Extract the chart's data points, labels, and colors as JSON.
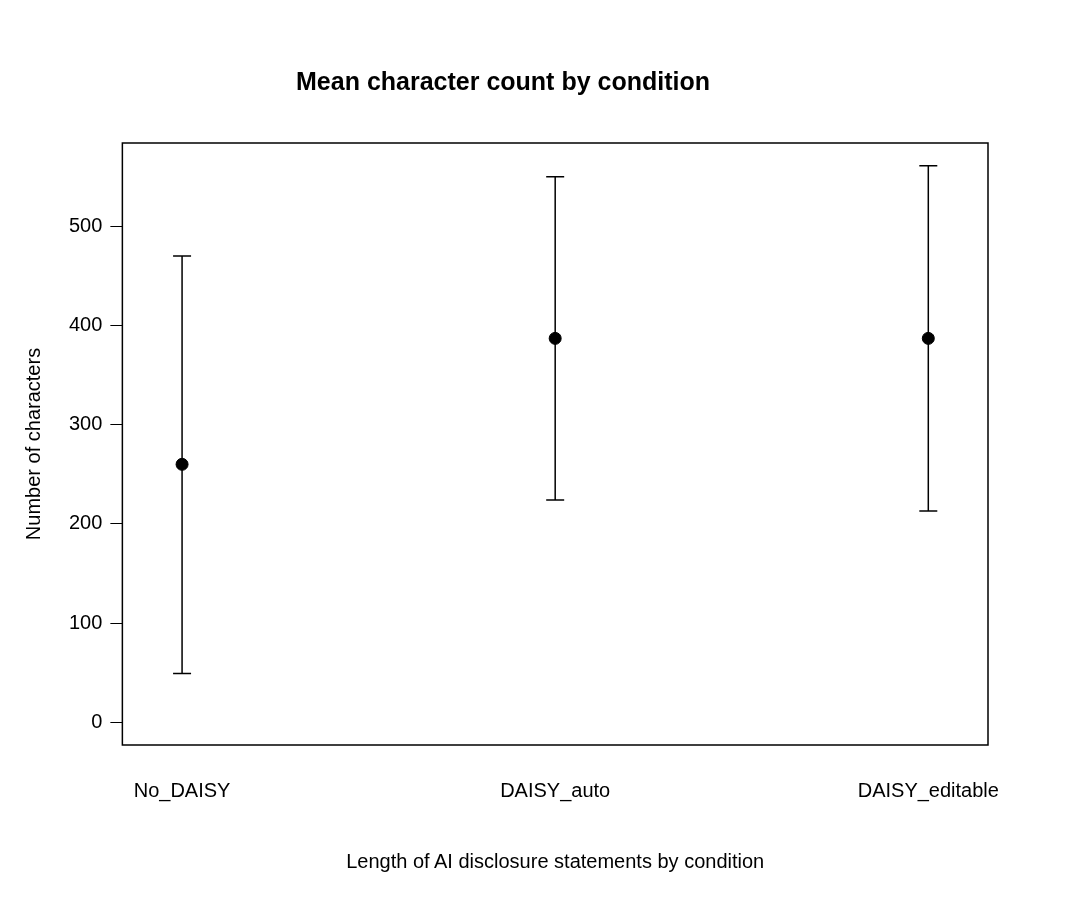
{
  "chart_data": {
    "type": "scatter",
    "title": "Mean character count by condition",
    "xlabel": "Length of AI disclosure statements by condition",
    "ylabel": "Number of characters",
    "categories": [
      "No_DAISY",
      "DAISY_auto",
      "DAISY_editable"
    ],
    "values": [
      260,
      387,
      387
    ],
    "errors": [
      [
        49,
        470
      ],
      [
        224,
        550
      ],
      [
        213,
        561
      ]
    ],
    "color": "#000000",
    "marker": "circle",
    "ylim": [
      -23,
      584
    ],
    "yticks": [
      0,
      100,
      200,
      300,
      400,
      500
    ],
    "grid": false,
    "legend": false
  }
}
